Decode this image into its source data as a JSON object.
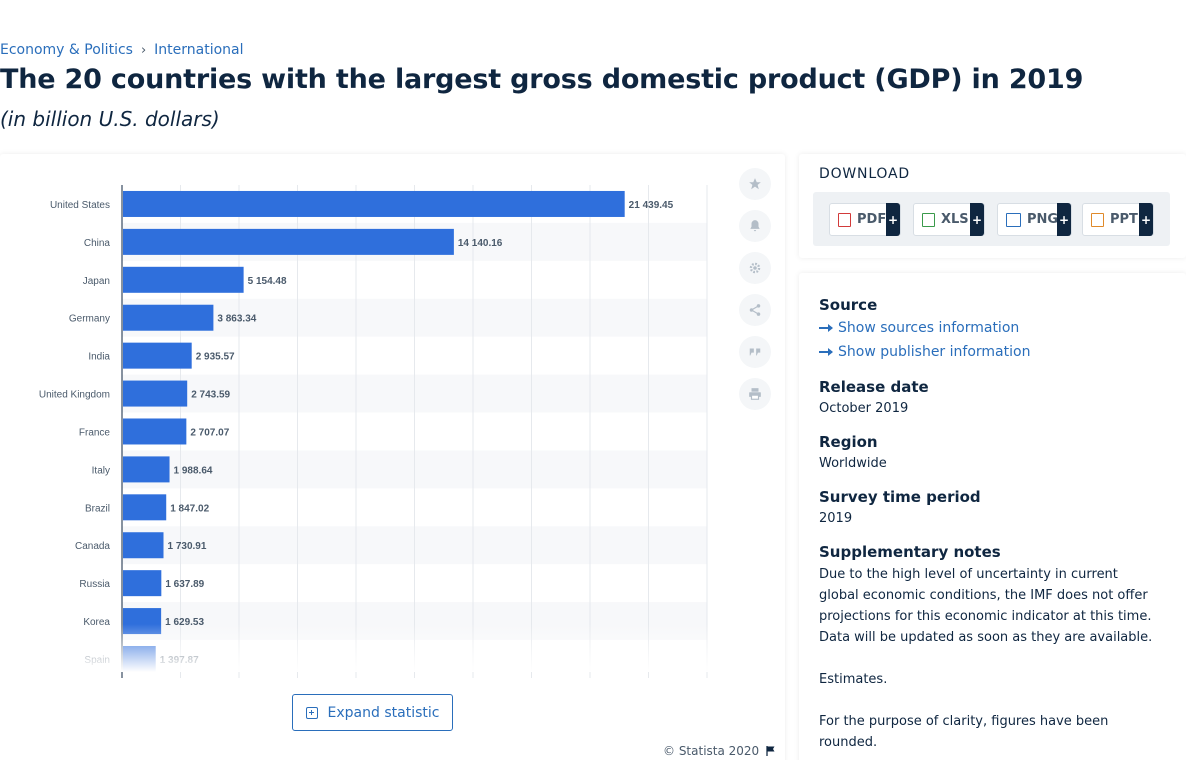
{
  "breadcrumb": {
    "item1": "Economy & Politics",
    "separator": "›",
    "item2": "International"
  },
  "title": "The 20 countries with the largest gross domestic product (GDP) in 2019",
  "subtitle": "(in billion U.S. dollars)",
  "toolbar": {
    "icons": [
      "star-icon",
      "bell-icon",
      "gear-icon",
      "share-icon",
      "quote-icon",
      "print-icon"
    ]
  },
  "expand_label": "Expand statistic",
  "copyright": "© Statista 2020",
  "download": {
    "title": "DOWNLOAD",
    "buttons": [
      {
        "label": "PDF",
        "plus": "+",
        "icon": "pdf-file-icon"
      },
      {
        "label": "XLS",
        "plus": "+",
        "icon": "xls-file-icon"
      },
      {
        "label": "PNG",
        "plus": "+",
        "icon": "png-file-icon"
      },
      {
        "label": "PPT",
        "plus": "+",
        "icon": "ppt-file-icon"
      }
    ]
  },
  "info": {
    "source_heading": "Source",
    "show_sources": "Show sources information",
    "show_publisher": "Show publisher information",
    "release_heading": "Release date",
    "release_value": "October 2019",
    "region_heading": "Region",
    "region_value": "Worldwide",
    "survey_heading": "Survey time period",
    "survey_value": "2019",
    "supp_heading": "Supplementary notes",
    "supp_note1": "Due to the high level of uncertainty in current global economic conditions, the IMF does not offer projections for this economic indicator at this time. Data will be updated as soon as they are available.",
    "supp_note2": "Estimates.",
    "supp_note3": "For the purpose of clarity, figures have been rounded."
  },
  "colors": {
    "bar": "#2f6fdc",
    "accent": "#2a6ebb",
    "text_dark": "#0f2640"
  },
  "chart_data": {
    "type": "bar",
    "orientation": "horizontal",
    "categories": [
      "United States",
      "China",
      "Japan",
      "Germany",
      "India",
      "United Kingdom",
      "France",
      "Italy",
      "Brazil",
      "Canada",
      "Russia",
      "Korea",
      "Spain"
    ],
    "values": [
      21439.45,
      14140.16,
      5154.48,
      3863.34,
      2935.57,
      2743.59,
      2707.07,
      1988.64,
      1847.02,
      1730.91,
      1637.89,
      1629.53,
      1397.87
    ],
    "value_labels": [
      "21 439.45",
      "14 140.16",
      "5 154.48",
      "3 863.34",
      "2 935.57",
      "2 743.59",
      "2 707.07",
      "1 988.64",
      "1 847.02",
      "1 730.91",
      "1 637.89",
      "1 629.53",
      "1 397.87"
    ],
    "title": "",
    "xlabel": "",
    "ylabel": "",
    "xlim": [
      0,
      25000
    ],
    "grid": true
  }
}
